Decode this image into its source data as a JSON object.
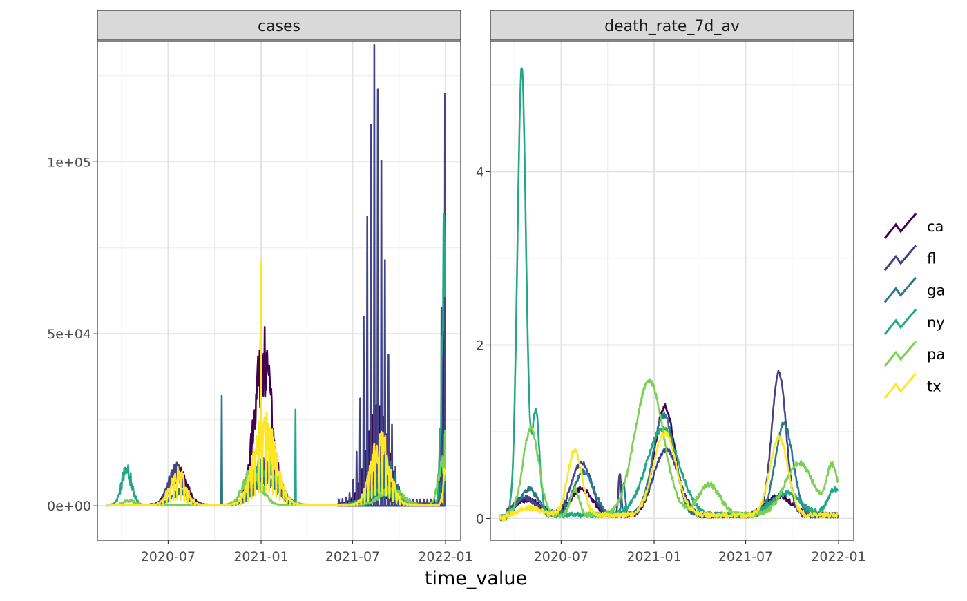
{
  "chart_data": {
    "type": "line",
    "facet_layout": "two panels side by side, independent y scales, shared x axis",
    "xlabel": "time_value",
    "x_tick_labels": [
      "2020-07",
      "2021-01",
      "2021-07",
      "2022-01"
    ],
    "x_ticks": [
      "2020-07-01",
      "2021-01-01",
      "2021-07-01",
      "2022-01-01"
    ],
    "xlim": [
      "2020-02-12",
      "2022-01-31"
    ],
    "x_range_data": [
      "2020-03-01",
      "2021-12-31"
    ],
    "grid": true,
    "theme": "white panel with grey gridlines and black border, grey facet strips",
    "legend": {
      "placement": "right",
      "entries": [
        "ca",
        "fl",
        "ga",
        "ny",
        "pa",
        "tx"
      ]
    },
    "series_colors": {
      "ca": "#440154",
      "fl": "#414487",
      "ga": "#2a788e",
      "ny": "#22a884",
      "pa": "#7ad151",
      "tx": "#fde725"
    },
    "panels": [
      {
        "strip_label": "cases",
        "ylim": [
          -10000,
          135000
        ],
        "y_ticks": [
          0,
          50000,
          100000
        ],
        "y_tick_labels": [
          "0e+00",
          "5e+04",
          "1e+05"
        ],
        "approx_peaks": {
          "ca": {
            "date": "2021-01-01",
            "value": 56000
          },
          "fl": {
            "date": "2021-08-10",
            "value": 134000
          },
          "ga": {
            "date": "2020-10-15",
            "value": 32000
          },
          "ny": {
            "date": "2021-12-28",
            "value": 82000
          },
          "pa": {
            "date": "2021-12-31",
            "value": 22000
          },
          "tx": {
            "date": "2021-01-01",
            "value": 71000
          }
        }
      },
      {
        "strip_label": "death_rate_7d_av",
        "ylim": [
          -0.25,
          5.5
        ],
        "y_ticks": [
          0,
          2,
          4
        ],
        "y_tick_labels": [
          "0",
          "2",
          "4"
        ],
        "approx_peaks": {
          "ca": {
            "date": "2021-01-25",
            "value": 1.35
          },
          "fl": {
            "date": "2021-09-05",
            "value": 1.9
          },
          "ga": {
            "date": "2021-01-20",
            "value": 1.3
          },
          "ny": {
            "date": "2020-04-15",
            "value": 5.25
          },
          "pa": {
            "date": "2020-12-20",
            "value": 1.7
          },
          "tx": {
            "date": "2021-01-20",
            "value": 1.1
          }
        }
      }
    ]
  }
}
